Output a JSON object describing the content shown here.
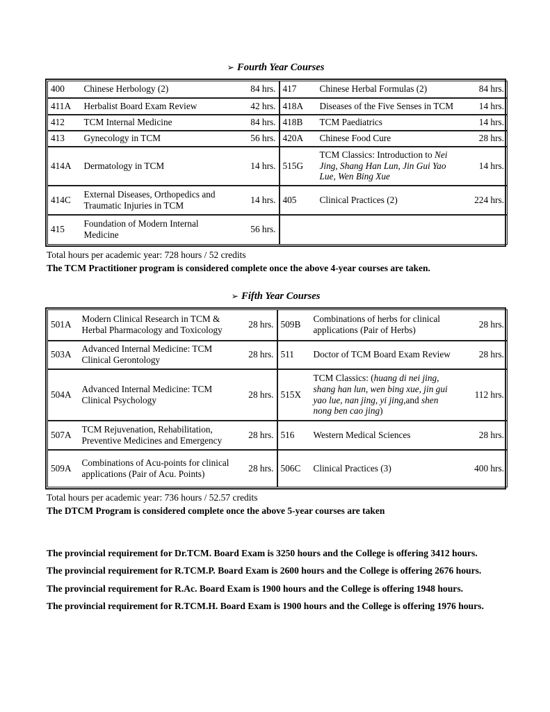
{
  "colors": {
    "text": "#000000",
    "border": "#1c1c1c",
    "background": "#ffffff"
  },
  "fourth_year": {
    "bullet": "➢",
    "heading": "Fourth Year Courses",
    "rows": [
      {
        "l_code": "400",
        "l_title": "Chinese Herbology (2)",
        "l_hours": "84 hrs.",
        "r_code": "417",
        "r_title": "Chinese Herbal Formulas (2)",
        "r_hours": "84 hrs."
      },
      {
        "l_code": "411A",
        "l_title": "Herbalist Board Exam Review",
        "l_hours": "42 hrs.",
        "r_code": "418A",
        "r_title": "Diseases of the Five Senses in TCM",
        "r_hours": "14 hrs."
      },
      {
        "l_code": "412",
        "l_title": "TCM Internal Medicine",
        "l_hours": "84 hrs.",
        "r_code": "418B",
        "r_title": "TCM Paediatrics",
        "r_hours": "14 hrs."
      },
      {
        "l_code": "413",
        "l_title": "Gynecology in TCM",
        "l_hours": "56 hrs.",
        "r_code": "420A",
        "r_title": "Chinese Food Cure",
        "r_hours": "28 hrs."
      },
      {
        "l_code": "414A",
        "l_title": "Dermatology in TCM",
        "l_hours": "14 hrs.",
        "r_code": "515G",
        "r_title": [
          {
            "t": "TCM Classics: Introduction to "
          },
          {
            "t": "Nei Jing, Shang Han Lun, Jin Gui Yao Lue, Wen Bing Xue",
            "i": true
          }
        ],
        "r_hours": "14 hrs."
      },
      {
        "l_code": "414C",
        "l_title": "External Diseases, Orthopedics and Traumatic Injuries in TCM",
        "l_hours": "14 hrs.",
        "r_code": "405",
        "r_title": "Clinical Practices (2)",
        "r_hours": "224 hrs."
      },
      {
        "l_code": "415",
        "l_title": "Foundation of Modern Internal Medicine",
        "l_hours": "56 hrs.",
        "r_code": "",
        "r_title": "",
        "r_hours": ""
      }
    ],
    "total": "Total hours per academic year: 728 hours / 52 credits",
    "note": "The TCM Practitioner program is considered complete once the above 4-year courses are taken."
  },
  "fifth_year": {
    "bullet": "➢",
    "heading": "Fifth Year Courses",
    "rows": [
      {
        "l_code": "501A",
        "l_title": "Modern Clinical Research in TCM & Herbal Pharmacology and Toxicology",
        "l_hours": "28 hrs.",
        "r_code": "509B",
        "r_title": "Combinations of herbs for clinical applications (Pair of Herbs)",
        "r_hours": "28 hrs."
      },
      {
        "l_code": "503A",
        "l_title": "Advanced Internal Medicine: TCM Clinical Gerontology",
        "l_hours": "28 hrs.",
        "r_code": "511",
        "r_title": "Doctor of TCM Board Exam Review",
        "r_hours": "28 hrs."
      },
      {
        "l_code": "504A",
        "l_title": "Advanced Internal Medicine: TCM Clinical Psychology",
        "l_hours": "28 hrs.",
        "r_code": "515X",
        "r_title": [
          {
            "t": "TCM Classics: ("
          },
          {
            "t": "huang di nei jing, shang han lun, wen bing xue, jin gui yao lue, nan jing, yi jing,",
            "i": true
          },
          {
            "t": "and "
          },
          {
            "t": "shen nong ben cao jing",
            "i": true
          },
          {
            "t": ")"
          }
        ],
        "r_hours": "112 hrs."
      },
      {
        "l_code": "507A",
        "l_title": "TCM Rejuvenation, Rehabilitation, Preventive Medicines and Emergency",
        "l_hours": "28 hrs.",
        "r_code": "516",
        "r_title": "Western Medical Sciences",
        "r_hours": "28 hrs."
      },
      {
        "l_code": "509A",
        "l_title": "Combinations of Acu-points for clinical applications (Pair of Acu. Points)",
        "l_hours": "28 hrs.",
        "r_code": "506C",
        "r_title": "Clinical Practices (3)",
        "r_hours": "400 hrs."
      }
    ],
    "total": "Total hours per academic year: 736 hours / 52.57 credits",
    "note": "The DTCM Program is considered complete once the above 5-year courses are taken"
  },
  "footer": {
    "paragraphs": [
      "The provincial requirement for Dr.TCM. Board Exam is 3250 hours and the College is offering 3412 hours.",
      "The provincial requirement for R.TCM.P. Board Exam is 2600 hours and the College is offering 2676 hours.",
      "The provincial requirement for R.Ac. Board Exam is 1900 hours and the College is offering 1948 hours.",
      "The provincial requirement for R.TCM.H. Board Exam is 1900 hours and the College is offering 1976 hours."
    ]
  }
}
